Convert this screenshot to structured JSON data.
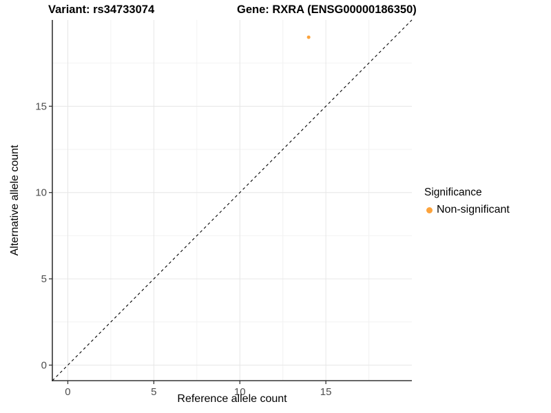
{
  "chart_data": {
    "type": "scatter",
    "title_left": "Variant: rs34733074",
    "title_right": "Gene: RXRA (ENSG00000186350)",
    "xlabel": "Reference allele count",
    "ylabel": "Alternative allele count",
    "xlim": [
      -0.9,
      20
    ],
    "ylim": [
      -0.9,
      20
    ],
    "xticks": [
      0,
      5,
      10,
      15
    ],
    "yticks": [
      0,
      5,
      10,
      15
    ],
    "xminor": [
      2.5,
      7.5,
      12.5,
      17.5
    ],
    "yminor": [
      2.5,
      7.5,
      12.5,
      17.5
    ],
    "grid": "major and minor gridlines, white panel background",
    "identity_line": {
      "slope": 1,
      "intercept": 0,
      "style": "dashed",
      "from": -0.9,
      "to": 20
    },
    "series": [
      {
        "name": "Non-significant",
        "color": "#FCA33C",
        "points": [
          {
            "x": 14,
            "y": 19
          }
        ]
      }
    ],
    "legend": {
      "title": "Significance",
      "position": "right",
      "entries": [
        {
          "label": "Non-significant",
          "color": "#FCA33C"
        }
      ]
    },
    "colors": {
      "axis": "#333333",
      "tick_label": "#4D4D4D",
      "grid_major": "#E6E6E6",
      "grid_minor": "#F2F2F2",
      "identity_line": "#000000"
    }
  }
}
